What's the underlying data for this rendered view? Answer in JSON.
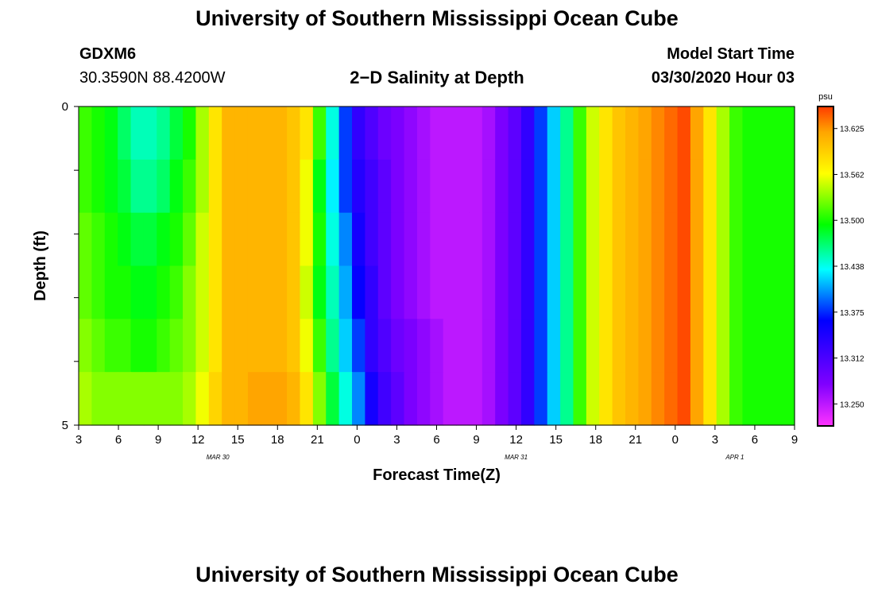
{
  "page": {
    "title_top": "University of Southern Mississippi Ocean Cube",
    "title_bottom": "University of Southern Mississippi Ocean Cube",
    "station": "GDXM6",
    "coords": "30.3590N 88.4200W",
    "plot_title": "2−D Salinity at Depth",
    "start_label": "Model Start Time",
    "start_value": "03/30/2020 Hour 03"
  },
  "chart_data": {
    "type": "heatmap",
    "xlabel": "Forecast Time(Z)",
    "ylabel": "Depth (ft)",
    "x_start_hour": 3,
    "x_step_hours": 1,
    "x_ticks": [
      "3",
      "6",
      "9",
      "12",
      "15",
      "18",
      "21",
      "0",
      "3",
      "6",
      "9",
      "12",
      "15",
      "18",
      "21",
      "0",
      "3",
      "6",
      "9"
    ],
    "date_labels": [
      {
        "text": "MAR  30",
        "at_tick": 3.5
      },
      {
        "text": "MAR  31",
        "at_tick": 11
      },
      {
        "text": "APR  1",
        "at_tick": 16.5
      }
    ],
    "y_ticks": [
      "0",
      "",
      "",
      "",
      "",
      "5"
    ],
    "ylim": [
      0,
      5
    ],
    "colorbar": {
      "unit": "psu",
      "ticks": [
        "13.625",
        "13.562",
        "13.500",
        "13.438",
        "13.375",
        "13.312",
        "13.250"
      ],
      "tick_values": [
        13.625,
        13.5625,
        13.5,
        13.4375,
        13.375,
        13.3125,
        13.25
      ],
      "range": [
        13.22,
        13.655
      ],
      "colors": [
        "#ff33ff",
        "#8000ff",
        "#0000ff",
        "#00ffff",
        "#00ff00",
        "#ffff00",
        "#ffa500",
        "#ff3b00"
      ],
      "color_stops": [
        0.0,
        0.13,
        0.33,
        0.49,
        0.63,
        0.79,
        0.92,
        1.0
      ]
    },
    "column_hours": [
      3,
      4,
      5,
      6,
      7,
      8,
      9,
      10,
      11,
      12,
      13,
      14,
      15,
      16,
      17,
      18,
      19,
      20,
      21,
      22,
      23,
      0,
      1,
      2,
      3,
      4,
      5,
      6,
      7,
      8,
      9,
      10,
      11,
      12,
      13,
      14,
      15,
      16,
      17,
      18,
      19,
      20,
      21,
      22,
      23,
      0,
      1,
      2,
      3,
      4,
      5,
      6,
      7,
      8,
      9
    ],
    "values": [
      [
        13.51,
        13.5,
        13.49,
        13.47,
        13.45,
        13.45,
        13.46,
        13.48,
        13.5,
        13.54,
        13.58,
        13.61,
        13.61,
        13.61,
        13.61,
        13.61,
        13.6,
        13.58,
        13.51,
        13.44,
        13.38,
        13.33,
        13.31,
        13.29,
        13.28,
        13.27,
        13.26,
        13.25,
        13.25,
        13.25,
        13.25,
        13.26,
        13.28,
        13.3,
        13.33,
        13.38,
        13.42,
        13.46,
        13.51,
        13.55,
        13.58,
        13.6,
        13.61,
        13.62,
        13.63,
        13.64,
        13.65,
        13.62,
        13.58,
        13.54,
        13.51,
        13.5,
        13.5,
        13.5,
        13.5
      ],
      [
        13.51,
        13.5,
        13.49,
        13.48,
        13.46,
        13.46,
        13.47,
        13.49,
        13.51,
        13.54,
        13.58,
        13.61,
        13.61,
        13.61,
        13.61,
        13.61,
        13.6,
        13.56,
        13.49,
        13.43,
        13.38,
        13.34,
        13.32,
        13.3,
        13.28,
        13.27,
        13.26,
        13.25,
        13.25,
        13.25,
        13.25,
        13.26,
        13.28,
        13.3,
        13.33,
        13.38,
        13.42,
        13.46,
        13.51,
        13.55,
        13.58,
        13.6,
        13.61,
        13.62,
        13.63,
        13.64,
        13.65,
        13.62,
        13.58,
        13.54,
        13.51,
        13.5,
        13.5,
        13.5,
        13.5
      ],
      [
        13.52,
        13.51,
        13.5,
        13.49,
        13.48,
        13.48,
        13.49,
        13.5,
        13.52,
        13.55,
        13.58,
        13.61,
        13.61,
        13.61,
        13.61,
        13.61,
        13.6,
        13.56,
        13.5,
        13.44,
        13.4,
        13.35,
        13.32,
        13.3,
        13.28,
        13.27,
        13.26,
        13.25,
        13.25,
        13.25,
        13.25,
        13.26,
        13.28,
        13.3,
        13.33,
        13.38,
        13.42,
        13.46,
        13.51,
        13.55,
        13.58,
        13.6,
        13.61,
        13.62,
        13.63,
        13.64,
        13.65,
        13.62,
        13.58,
        13.54,
        13.51,
        13.5,
        13.5,
        13.5,
        13.5
      ],
      [
        13.52,
        13.51,
        13.5,
        13.5,
        13.49,
        13.49,
        13.5,
        13.51,
        13.53,
        13.55,
        13.58,
        13.61,
        13.61,
        13.61,
        13.61,
        13.61,
        13.6,
        13.55,
        13.49,
        13.45,
        13.41,
        13.36,
        13.33,
        13.3,
        13.28,
        13.27,
        13.26,
        13.25,
        13.25,
        13.25,
        13.25,
        13.26,
        13.28,
        13.3,
        13.33,
        13.38,
        13.42,
        13.46,
        13.51,
        13.55,
        13.58,
        13.6,
        13.61,
        13.62,
        13.63,
        13.64,
        13.65,
        13.62,
        13.58,
        13.54,
        13.51,
        13.5,
        13.5,
        13.5,
        13.5
      ],
      [
        13.53,
        13.52,
        13.51,
        13.51,
        13.5,
        13.5,
        13.51,
        13.52,
        13.53,
        13.55,
        13.58,
        13.61,
        13.61,
        13.61,
        13.61,
        13.61,
        13.6,
        13.56,
        13.51,
        13.46,
        13.42,
        13.38,
        13.33,
        13.31,
        13.29,
        13.28,
        13.27,
        13.26,
        13.25,
        13.25,
        13.25,
        13.26,
        13.28,
        13.3,
        13.33,
        13.38,
        13.42,
        13.46,
        13.51,
        13.55,
        13.58,
        13.6,
        13.61,
        13.62,
        13.63,
        13.64,
        13.65,
        13.62,
        13.58,
        13.54,
        13.51,
        13.5,
        13.5,
        13.5,
        13.5
      ],
      [
        13.54,
        13.53,
        13.53,
        13.53,
        13.53,
        13.53,
        13.53,
        13.53,
        13.54,
        13.56,
        13.59,
        13.61,
        13.61,
        13.62,
        13.62,
        13.62,
        13.61,
        13.58,
        13.53,
        13.48,
        13.44,
        13.4,
        13.35,
        13.32,
        13.3,
        13.28,
        13.27,
        13.26,
        13.25,
        13.25,
        13.25,
        13.26,
        13.28,
        13.3,
        13.33,
        13.38,
        13.42,
        13.46,
        13.51,
        13.55,
        13.58,
        13.6,
        13.61,
        13.62,
        13.63,
        13.64,
        13.65,
        13.62,
        13.58,
        13.54,
        13.51,
        13.5,
        13.5,
        13.5,
        13.5
      ]
    ]
  }
}
